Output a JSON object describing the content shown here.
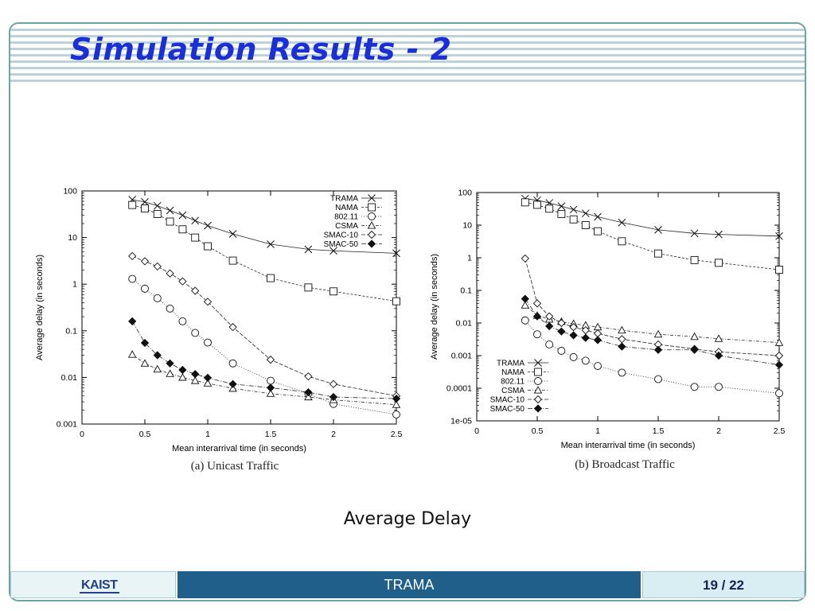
{
  "slide": {
    "title": "Simulation Results - 2",
    "subtitle": "Average Delay",
    "footer_left": "KAIST",
    "footer_center": "TRAMA",
    "page": "19 / 22"
  },
  "chart_data": [
    {
      "type": "line",
      "caption": "(a) Unicast Traffic",
      "xlabel": "Mean interarrival time (in seconds)",
      "ylabel": "Average delay (in seconds)",
      "xlim": [
        0,
        2.5
      ],
      "ylim": [
        0.001,
        100
      ],
      "yscale": "log",
      "xticks": [
        {
          "v": 0,
          "t": "0"
        },
        {
          "v": 0.5,
          "t": "0.5"
        },
        {
          "v": 1,
          "t": "1"
        },
        {
          "v": 1.5,
          "t": "1.5"
        },
        {
          "v": 2,
          "t": "2"
        },
        {
          "v": 2.5,
          "t": "2.5"
        }
      ],
      "yticks": [
        {
          "v": 100,
          "t": "100"
        },
        {
          "v": 10,
          "t": "10"
        },
        {
          "v": 1,
          "t": "1"
        },
        {
          "v": 0.1,
          "t": "0.1"
        },
        {
          "v": 0.01,
          "t": "0.01"
        },
        {
          "v": 0.001,
          "t": "0.001"
        }
      ],
      "legend_position": "top-right",
      "series": [
        {
          "name": "TRAMA",
          "marker": "x",
          "x": [
            0.4,
            0.5,
            0.6,
            0.7,
            0.8,
            0.9,
            1,
            1.2,
            1.5,
            1.8,
            2,
            2.5
          ],
          "y": [
            65,
            58,
            48,
            38,
            30,
            23,
            18,
            12,
            7.2,
            5.6,
            5.2,
            4.6
          ]
        },
        {
          "name": "NAMA",
          "marker": "square",
          "x": [
            0.4,
            0.5,
            0.6,
            0.7,
            0.8,
            0.9,
            1,
            1.2,
            1.5,
            1.8,
            2,
            2.5
          ],
          "y": [
            50,
            42,
            32,
            22,
            15,
            10,
            6.5,
            3.2,
            1.35,
            0.85,
            0.7,
            0.43
          ]
        },
        {
          "name": "802.11",
          "marker": "circle",
          "x": [
            0.4,
            0.5,
            0.6,
            0.7,
            0.8,
            0.9,
            1,
            1.2,
            1.5,
            1.8,
            2,
            2.5
          ],
          "y": [
            1.3,
            0.8,
            0.5,
            0.3,
            0.16,
            0.09,
            0.056,
            0.02,
            0.0085,
            0.0045,
            0.0027,
            0.0016
          ]
        },
        {
          "name": "CSMA",
          "marker": "triangle",
          "x": [
            0.4,
            0.5,
            0.6,
            0.7,
            0.8,
            0.9,
            1,
            1.2,
            1.5,
            1.8,
            2,
            2.5
          ],
          "y": [
            0.031,
            0.02,
            0.015,
            0.012,
            0.01,
            0.0085,
            0.0075,
            0.0058,
            0.0045,
            0.0038,
            0.0033,
            0.0026
          ]
        },
        {
          "name": "SMAC-10",
          "marker": "diamond",
          "x": [
            0.4,
            0.5,
            0.6,
            0.7,
            0.8,
            0.9,
            1,
            1.2,
            1.5,
            1.8,
            2,
            2.5
          ],
          "y": [
            4,
            3.1,
            2.4,
            1.7,
            1.15,
            0.72,
            0.42,
            0.12,
            0.024,
            0.0105,
            0.0072,
            0.004
          ]
        },
        {
          "name": "SMAC-50",
          "marker": "filled-diamond",
          "x": [
            0.4,
            0.5,
            0.6,
            0.7,
            0.8,
            0.9,
            1,
            1.2,
            1.5,
            1.8,
            2,
            2.5
          ],
          "y": [
            0.16,
            0.055,
            0.03,
            0.02,
            0.0145,
            0.0118,
            0.0098,
            0.0072,
            0.006,
            0.0048,
            0.0038,
            0.0035
          ]
        }
      ]
    },
    {
      "type": "line",
      "caption": "(b) Broadcast Traffic",
      "xlabel": "Mean interarrival time (in seconds)",
      "ylabel": "Average delay (in seconds)",
      "xlim": [
        0,
        2.5
      ],
      "ylim": [
        1e-05,
        100
      ],
      "yscale": "log",
      "xticks": [
        {
          "v": 0,
          "t": "0"
        },
        {
          "v": 0.5,
          "t": "0.5"
        },
        {
          "v": 1,
          "t": "1"
        },
        {
          "v": 1.5,
          "t": "1.5"
        },
        {
          "v": 2,
          "t": "2"
        },
        {
          "v": 2.5,
          "t": "2.5"
        }
      ],
      "yticks": [
        {
          "v": 100,
          "t": "100"
        },
        {
          "v": 10,
          "t": "10"
        },
        {
          "v": 1,
          "t": "1"
        },
        {
          "v": 0.1,
          "t": "0.1"
        },
        {
          "v": 0.01,
          "t": "0.01"
        },
        {
          "v": 0.001,
          "t": "0.001"
        },
        {
          "v": 0.0001,
          "t": "0.0001"
        },
        {
          "v": 1e-05,
          "t": "1e-05"
        }
      ],
      "legend_position": "bottom-left",
      "series": [
        {
          "name": "TRAMA",
          "marker": "x",
          "x": [
            0.4,
            0.5,
            0.6,
            0.7,
            0.8,
            0.9,
            1,
            1.2,
            1.5,
            1.8,
            2,
            2.5
          ],
          "y": [
            65,
            58,
            48,
            38,
            30,
            23,
            18,
            12,
            7.2,
            5.6,
            5.2,
            4.6
          ]
        },
        {
          "name": "NAMA",
          "marker": "square",
          "x": [
            0.4,
            0.5,
            0.6,
            0.7,
            0.8,
            0.9,
            1,
            1.2,
            1.5,
            1.8,
            2,
            2.5
          ],
          "y": [
            50,
            42,
            32,
            22,
            15,
            10,
            6.5,
            3.2,
            1.35,
            0.85,
            0.7,
            0.43
          ]
        },
        {
          "name": "802.11",
          "marker": "circle",
          "x": [
            0.4,
            0.5,
            0.6,
            0.7,
            0.8,
            0.9,
            1,
            1.2,
            1.5,
            1.8,
            2,
            2.5
          ],
          "y": [
            0.012,
            0.0045,
            0.0022,
            0.0014,
            0.0009,
            0.0007,
            0.00048,
            0.0003,
            0.00019,
            0.00011,
            0.00011,
            7e-05
          ]
        },
        {
          "name": "CSMA",
          "marker": "triangle",
          "x": [
            0.4,
            0.5,
            0.6,
            0.7,
            0.8,
            0.9,
            1,
            1.2,
            1.5,
            1.8,
            2,
            2.5
          ],
          "y": [
            0.035,
            0.017,
            0.013,
            0.011,
            0.0095,
            0.0085,
            0.0075,
            0.006,
            0.0045,
            0.0038,
            0.0033,
            0.0025
          ]
        },
        {
          "name": "SMAC-10",
          "marker": "diamond",
          "x": [
            0.4,
            0.5,
            0.6,
            0.7,
            0.8,
            0.9,
            1,
            1.2,
            1.5,
            1.8,
            2,
            2.5
          ],
          "y": [
            0.95,
            0.04,
            0.016,
            0.01,
            0.0075,
            0.006,
            0.0048,
            0.0032,
            0.0022,
            0.0016,
            0.0013,
            0.001
          ]
        },
        {
          "name": "SMAC-50",
          "marker": "filled-diamond",
          "x": [
            0.4,
            0.5,
            0.6,
            0.7,
            0.8,
            0.9,
            1,
            1.2,
            1.5,
            1.8,
            2,
            2.5
          ],
          "y": [
            0.055,
            0.016,
            0.008,
            0.0055,
            0.0042,
            0.0035,
            0.003,
            0.0019,
            0.0015,
            0.0015,
            0.001,
            0.00052
          ]
        }
      ]
    }
  ]
}
